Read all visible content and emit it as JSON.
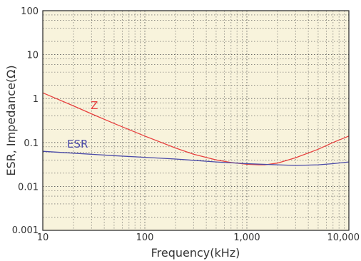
{
  "chart_data": {
    "type": "line",
    "xlabel": "Frequency(kHz)",
    "ylabel": "ESR, Impedance(Ω)",
    "xscale": "log",
    "yscale": "log",
    "xlim": [
      10,
      10000
    ],
    "ylim": [
      0.001,
      100
    ],
    "grid": true,
    "background": "#f8f3dc",
    "x_ticks": [
      {
        "value": 10,
        "label": "10"
      },
      {
        "value": 100,
        "label": "100"
      },
      {
        "value": 1000,
        "label": "1,000"
      },
      {
        "value": 10000,
        "label": "10,000"
      }
    ],
    "y_ticks": [
      {
        "value": 0.001,
        "label": "0.001"
      },
      {
        "value": 0.01,
        "label": "0.01"
      },
      {
        "value": 0.1,
        "label": "0.1"
      },
      {
        "value": 1,
        "label": "1"
      },
      {
        "value": 10,
        "label": "10"
      },
      {
        "value": 100,
        "label": "100"
      }
    ],
    "series": [
      {
        "name": "Z",
        "color": "#e8403f",
        "x": [
          10,
          20,
          30,
          50,
          100,
          200,
          300,
          500,
          700,
          1000,
          1300,
          1500,
          2000,
          3000,
          5000,
          7000,
          10000
        ],
        "y": [
          1.35,
          0.68,
          0.45,
          0.27,
          0.14,
          0.075,
          0.054,
          0.04,
          0.035,
          0.032,
          0.031,
          0.031,
          0.034,
          0.045,
          0.07,
          0.1,
          0.14
        ]
      },
      {
        "name": "ESR",
        "color": "#4a4aa8",
        "x": [
          10,
          20,
          50,
          100,
          200,
          500,
          1000,
          2000,
          3000,
          5000,
          7000,
          10000
        ],
        "y": [
          0.063,
          0.057,
          0.05,
          0.046,
          0.042,
          0.036,
          0.033,
          0.031,
          0.03,
          0.031,
          0.033,
          0.036
        ]
      }
    ]
  }
}
